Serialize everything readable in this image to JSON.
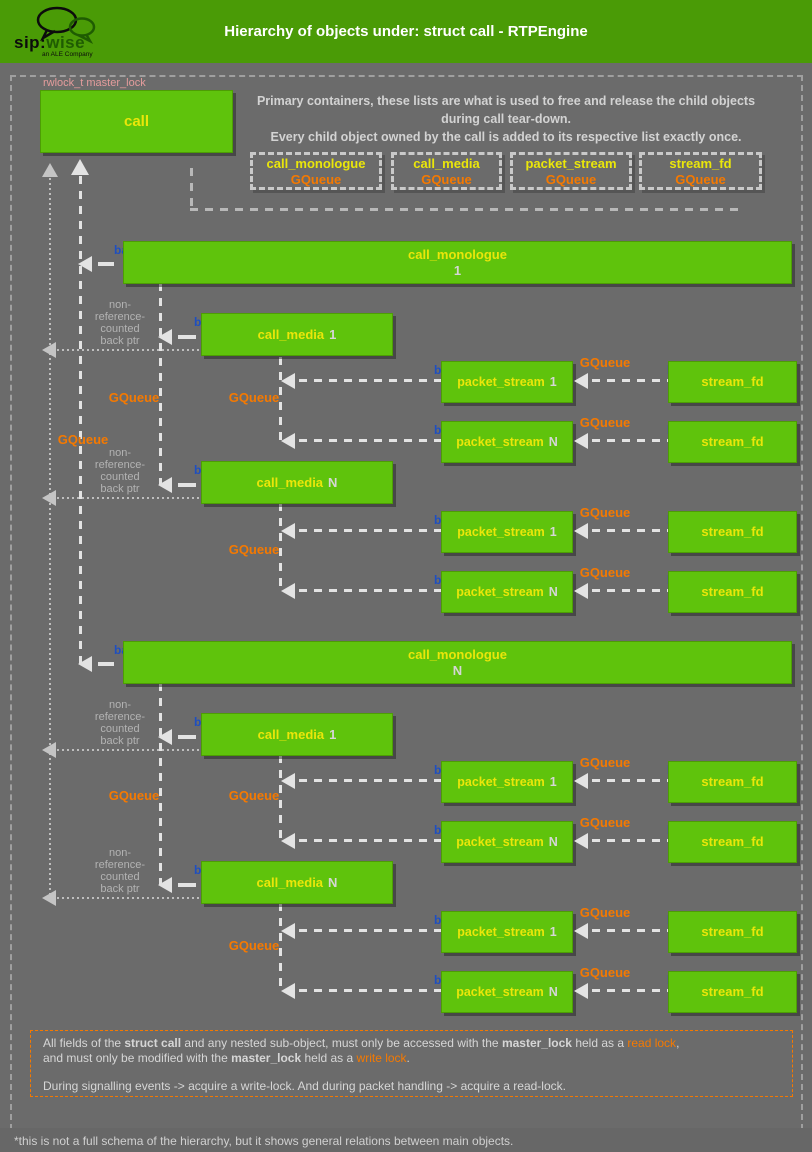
{
  "header": {
    "logo": {
      "sip": "sip:",
      "wise": "wise",
      "company": "an ALE Company"
    },
    "title": "Hierarchy of objects under: struct call - RTPEngine"
  },
  "top": {
    "lock_label": "rwlock_t master_lock",
    "call_box": "call",
    "intro_line1": "Primary containers, these lists are what is used to free and release the child objects",
    "intro_line2": "during call tear-down.",
    "intro_line3": "Every child object owned by the call is added to its respective list exactly once."
  },
  "containers": [
    {
      "name": "call_monologue",
      "type": "GQueue"
    },
    {
      "name": "call_media",
      "type": "GQueue"
    },
    {
      "name": "packet_stream",
      "type": "GQueue"
    },
    {
      "name": "stream_fd",
      "type": "GQueue"
    }
  ],
  "labels": {
    "back_ptr": "back ptr",
    "gqueue": "GQueue",
    "nonref": [
      "non-",
      "reference-",
      "counted",
      "back ptr"
    ]
  },
  "tree": {
    "monologues": [
      {
        "name": "call_monologue",
        "index": "1",
        "medias": [
          {
            "name": "call_media",
            "index": "1",
            "streams": [
              {
                "ps_name": "packet_stream",
                "ps_index": "1",
                "sf_name": "stream_fd"
              },
              {
                "ps_name": "packet_stream",
                "ps_index": "N",
                "sf_name": "stream_fd"
              }
            ]
          },
          {
            "name": "call_media",
            "index": "N",
            "streams": [
              {
                "ps_name": "packet_stream",
                "ps_index": "1",
                "sf_name": "stream_fd"
              },
              {
                "ps_name": "packet_stream",
                "ps_index": "N",
                "sf_name": "stream_fd"
              }
            ]
          }
        ]
      },
      {
        "name": "call_monologue",
        "index": "N",
        "medias": [
          {
            "name": "call_media",
            "index": "1",
            "streams": [
              {
                "ps_name": "packet_stream",
                "ps_index": "1",
                "sf_name": "stream_fd"
              },
              {
                "ps_name": "packet_stream",
                "ps_index": "N",
                "sf_name": "stream_fd"
              }
            ]
          },
          {
            "name": "call_media",
            "index": "N",
            "streams": [
              {
                "ps_name": "packet_stream",
                "ps_index": "1",
                "sf_name": "stream_fd"
              },
              {
                "ps_name": "packet_stream",
                "ps_index": "N",
                "sf_name": "stream_fd"
              }
            ]
          }
        ]
      }
    ]
  },
  "note": {
    "line1": [
      {
        "t": "All fields of the "
      },
      {
        "t": "struct call",
        "b": true
      },
      {
        "t": " and any nested sub-object, must only be accessed with the "
      },
      {
        "t": "master_lock",
        "b": true
      },
      {
        "t": " held as a "
      },
      {
        "t": "read lock",
        "o": true
      },
      {
        "t": ","
      }
    ],
    "line2": [
      {
        "t": "and must only be modified with the "
      },
      {
        "t": "master_lock",
        "b": true
      },
      {
        "t": " held as a "
      },
      {
        "t": "write lock",
        "o": true
      },
      {
        "t": "."
      }
    ],
    "line3": [
      {
        "t": "During signalling events -> acquire a write-lock. And during packet handling -> acquire a read-lock."
      }
    ]
  },
  "footer": "*this is not a full schema of the hierarchy, but it shows general relations between main objects.",
  "colors": {
    "box_green": "#5fc30c",
    "header_green": "#4a9b06",
    "yellow": "#eae60a",
    "orange": "#f57900",
    "back_ptr_blue": "#1e4fc0"
  }
}
